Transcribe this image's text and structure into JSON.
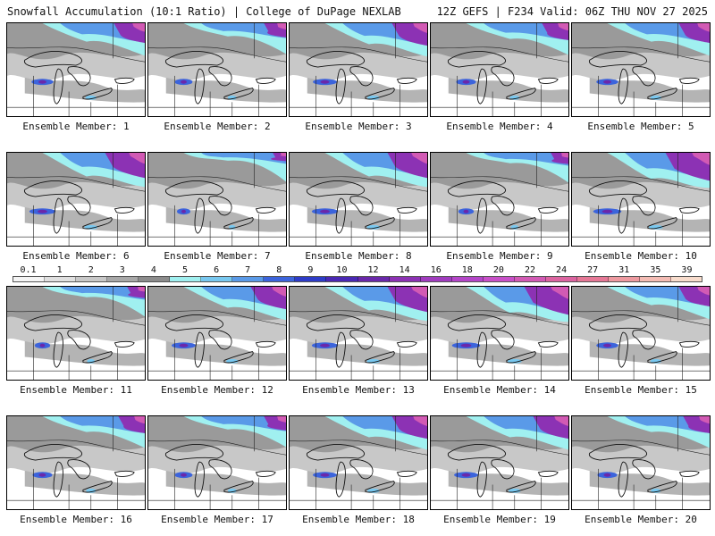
{
  "header": {
    "left_title": "Snowfall Accumulation (10:1 Ratio) | College of DuPage NEXLAB",
    "right_title": "12Z GEFS | F234 Valid: 06Z THU NOV 27 2025"
  },
  "legend": {
    "labels": [
      "0.1",
      "1",
      "2",
      "3",
      "4",
      "5",
      "6",
      "7",
      "8",
      "9",
      "10",
      "12",
      "14",
      "16",
      "18",
      "20",
      "22",
      "24",
      "27",
      "31",
      "35",
      "39"
    ],
    "colors": [
      "#f5f5f5",
      "#e0e0e0",
      "#c8c8c8",
      "#a8a8a8",
      "#8c8c8c",
      "#a0f0f0",
      "#78c8f0",
      "#5a9ae8",
      "#3c64dc",
      "#2e3cc8",
      "#4a28b4",
      "#6a28aa",
      "#8c32b4",
      "#a03cbe",
      "#b446c8",
      "#c850c8",
      "#d25ab4",
      "#dc64a0",
      "#e67896",
      "#ee9aa0",
      "#f4bcb4",
      "#f8dccc"
    ]
  },
  "members": [
    {
      "caption": "Ensemble Member: 1",
      "intensity": 0.7
    },
    {
      "caption": "Ensemble Member: 2",
      "intensity": 0.5
    },
    {
      "caption": "Ensemble Member: 3",
      "intensity": 0.8
    },
    {
      "caption": "Ensemble Member: 4",
      "intensity": 0.6
    },
    {
      "caption": "Ensemble Member: 5",
      "intensity": 0.7
    },
    {
      "caption": "Ensemble Member: 6",
      "intensity": 0.9
    },
    {
      "caption": "Ensemble Member: 7",
      "intensity": 0.3
    },
    {
      "caption": "Ensemble Member: 8",
      "intensity": 0.9
    },
    {
      "caption": "Ensemble Member: 9",
      "intensity": 0.4
    },
    {
      "caption": "Ensemble Member: 10",
      "intensity": 1.0
    },
    {
      "caption": "Ensemble Member: 11",
      "intensity": 0.4
    },
    {
      "caption": "Ensemble Member: 12",
      "intensity": 0.8
    },
    {
      "caption": "Ensemble Member: 13",
      "intensity": 0.9
    },
    {
      "caption": "Ensemble Member: 14",
      "intensity": 1.0
    },
    {
      "caption": "Ensemble Member: 15",
      "intensity": 0.7
    },
    {
      "caption": "Ensemble Member: 16",
      "intensity": 0.6
    },
    {
      "caption": "Ensemble Member: 17",
      "intensity": 0.5
    },
    {
      "caption": "Ensemble Member: 18",
      "intensity": 0.8
    },
    {
      "caption": "Ensemble Member: 19",
      "intensity": 0.8
    },
    {
      "caption": "Ensemble Member: 20",
      "intensity": 0.6
    }
  ]
}
